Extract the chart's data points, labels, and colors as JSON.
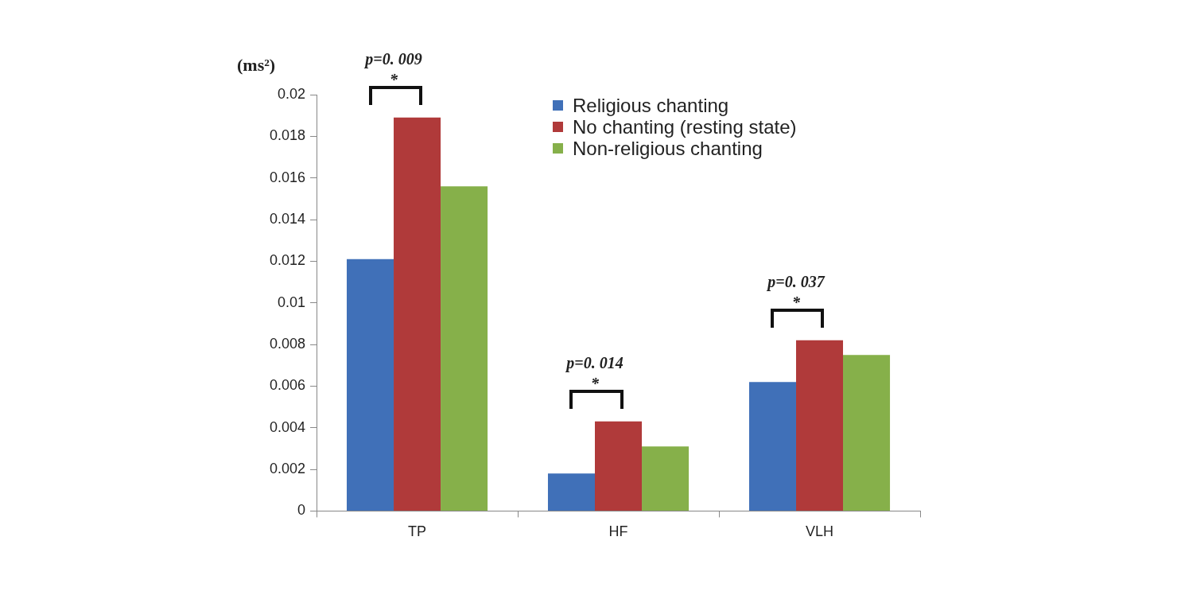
{
  "chart_data": {
    "type": "bar",
    "ylabel": "(ms²)",
    "categories": [
      "TP",
      "HF",
      "VLH"
    ],
    "series": [
      {
        "name": "Religious chanting",
        "color": "#4070b8",
        "values": [
          0.0121,
          0.0018,
          0.0062
        ]
      },
      {
        "name": "No chanting (resting state)",
        "color": "#b03a3a",
        "values": [
          0.0189,
          0.0043,
          0.0082
        ]
      },
      {
        "name": "Non-religious chanting",
        "color": "#86b04a",
        "values": [
          0.0156,
          0.0031,
          0.0075
        ]
      }
    ],
    "ylim": [
      0,
      0.02
    ],
    "yticks": [
      0,
      0.002,
      0.004,
      0.006,
      0.008,
      0.01,
      0.012,
      0.014,
      0.016,
      0.018,
      0.02
    ],
    "grid": false,
    "legend": "top right",
    "annotations": [
      "p=0. 009",
      "*",
      "p=0. 014",
      "*",
      "p=0. 037",
      "*"
    ]
  }
}
